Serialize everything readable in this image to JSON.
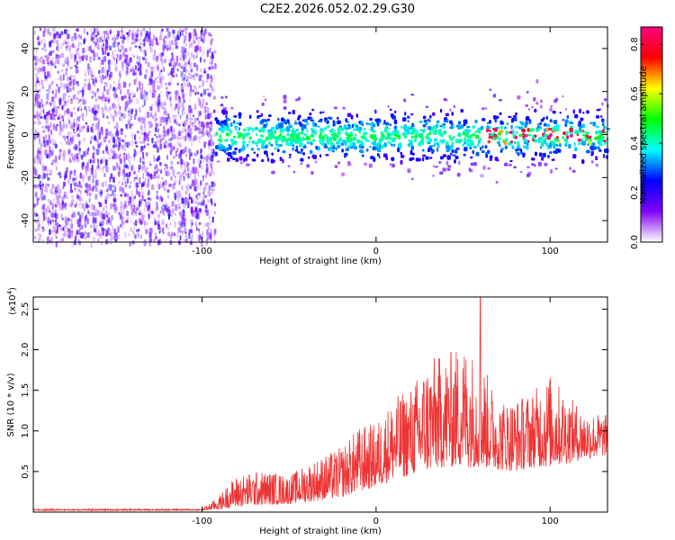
{
  "title": "C2E2.2026.052.02.29.G30",
  "colors": {
    "snr_line": "#ee3333",
    "axis": "#000000"
  },
  "chart_data": [
    {
      "type": "heatmap",
      "name": "spectrogram",
      "xlabel": "Height of straight line (km)",
      "ylabel": "Frequency (Hz)",
      "xlim": [
        -197,
        133
      ],
      "ylim": [
        -50,
        50
      ],
      "xticks": [
        -100,
        0,
        100
      ],
      "xtick_labels": [
        "-100",
        "0",
        "100"
      ],
      "yticks": [
        -40,
        -20,
        0,
        20,
        40
      ],
      "ytick_labels": [
        "-40",
        "-20",
        "0",
        "20",
        "40"
      ],
      "noise_region_x": [
        -197,
        -93
      ],
      "signal_band_center_hz": 0,
      "signal_band_halfwidth_hz": 10,
      "peak_amplitude_region_x": [
        60,
        133
      ],
      "colorbar": {
        "label": "Normalized spectral amplitude",
        "range": [
          0,
          0.87
        ],
        "ticks": [
          0,
          0.2,
          0.4,
          0.6,
          0.8
        ],
        "tick_labels": [
          "0.0",
          "0.2",
          "0.4",
          "0.6",
          "0.8"
        ],
        "colormap": [
          "#ffffff",
          "#8000ff",
          "#0000ff",
          "#00ffff",
          "#00ff00",
          "#ffff00",
          "#ff0000",
          "#ff0080"
        ]
      }
    },
    {
      "type": "line",
      "name": "snr",
      "xlabel": "Height of straight line (km)",
      "ylabel": "SNR (10 * v/v)",
      "scale_label": "(x10",
      "scale_exp": "4",
      "scale_close": ")",
      "xlim": [
        -197,
        133
      ],
      "ylim": [
        0,
        2.65
      ],
      "xticks": [
        -100,
        0,
        100
      ],
      "xtick_labels": [
        "-100",
        "0",
        "100"
      ],
      "yticks": [
        0.5,
        1.0,
        1.5,
        2.0,
        2.5
      ],
      "ytick_labels": [
        "0.5",
        "1.0",
        "1.5",
        "2.0",
        "2.5"
      ],
      "envelope": {
        "x": [
          -197,
          -100,
          -90,
          -85,
          -80,
          -70,
          -60,
          -50,
          -40,
          -30,
          -20,
          -10,
          0,
          10,
          20,
          30,
          40,
          50,
          60,
          70,
          80,
          90,
          100,
          110,
          120,
          133
        ],
        "low": [
          0.02,
          0.02,
          0.03,
          0.05,
          0.06,
          0.08,
          0.09,
          0.1,
          0.12,
          0.15,
          0.18,
          0.25,
          0.3,
          0.4,
          0.45,
          0.5,
          0.55,
          0.55,
          0.55,
          0.52,
          0.5,
          0.55,
          0.55,
          0.6,
          0.65,
          0.7
        ],
        "high": [
          0.04,
          0.04,
          0.2,
          0.35,
          0.45,
          0.5,
          0.5,
          0.45,
          0.6,
          0.7,
          0.8,
          1.05,
          1.1,
          1.4,
          1.55,
          1.9,
          1.95,
          2.1,
          1.9,
          1.4,
          1.4,
          1.5,
          1.7,
          1.45,
          1.25,
          1.2
        ]
      },
      "peak": {
        "x": 60,
        "y": 2.65
      }
    }
  ]
}
